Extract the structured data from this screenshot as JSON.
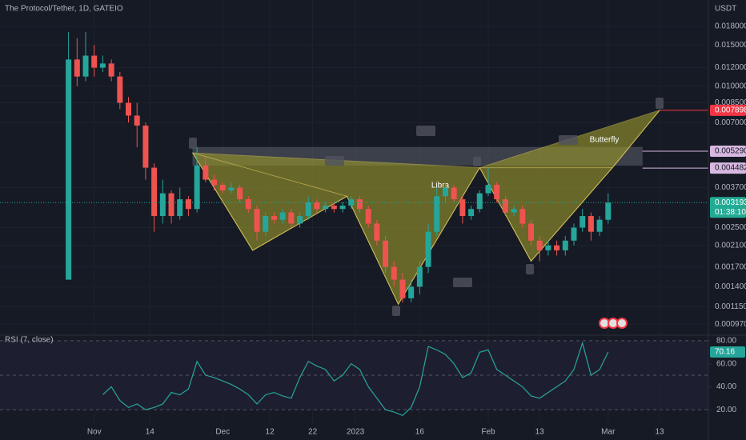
{
  "chart_data": {
    "type": "candlestick",
    "title": "The Protocol/Tether, 1D, GATEIO",
    "y_unit": "USDT",
    "log_scale": true,
    "up_color": "#26a69a",
    "down_color": "#ef5350",
    "x": [
      -6,
      -4,
      -2,
      0,
      2,
      4,
      6,
      8,
      10,
      12,
      14,
      16,
      18,
      20,
      22,
      24,
      26,
      28,
      30,
      32,
      34,
      36,
      38,
      40,
      42,
      44,
      46,
      48,
      50,
      52,
      54,
      56,
      58,
      60,
      62,
      64,
      66,
      68,
      70,
      72,
      74,
      76,
      78,
      80,
      82,
      84,
      86,
      88,
      90,
      92,
      94,
      96,
      98,
      100,
      102,
      104,
      106,
      108,
      110,
      112,
      114,
      116,
      118,
      120
    ],
    "open": [
      0.0015,
      0.013,
      0.011,
      0.0135,
      0.012,
      0.0125,
      0.011,
      0.0085,
      0.0075,
      0.0068,
      0.0045,
      0.0028,
      0.0035,
      0.0028,
      0.0033,
      0.003,
      0.0046,
      0.004,
      0.0038,
      0.0036,
      0.0037,
      0.0033,
      0.003,
      0.0024,
      0.0028,
      0.0027,
      0.0029,
      0.0026,
      0.0028,
      0.0032,
      0.003,
      0.0031,
      0.003,
      0.0031,
      0.0033,
      0.003,
      0.0026,
      0.0022,
      0.0017,
      0.0015,
      0.00125,
      0.0014,
      0.0017,
      0.0024,
      0.0034,
      0.0037,
      0.0033,
      0.0028,
      0.003,
      0.0035,
      0.0038,
      0.0033,
      0.0029,
      0.003,
      0.0026,
      0.0022,
      0.002,
      0.0021,
      0.002,
      0.0022,
      0.0025,
      0.0028,
      0.0024,
      0.0027
    ],
    "high": [
      0.017,
      0.016,
      0.017,
      0.015,
      0.0135,
      0.013,
      0.0115,
      0.009,
      0.0085,
      0.007,
      0.0047,
      0.004,
      0.0036,
      0.0037,
      0.0034,
      0.0055,
      0.005,
      0.0042,
      0.0039,
      0.0039,
      0.0038,
      0.0034,
      0.0031,
      0.0029,
      0.0029,
      0.003,
      0.003,
      0.0029,
      0.0034,
      0.0033,
      0.0032,
      0.0032,
      0.0032,
      0.0034,
      0.0034,
      0.0031,
      0.0027,
      0.0023,
      0.0018,
      0.0016,
      0.0015,
      0.0018,
      0.0026,
      0.0037,
      0.0039,
      0.0038,
      0.0034,
      0.0031,
      0.0036,
      0.0045,
      0.0039,
      0.0034,
      0.0031,
      0.0031,
      0.0027,
      0.0023,
      0.0022,
      0.0022,
      0.0023,
      0.0026,
      0.003,
      0.0029,
      0.0028,
      0.0035
    ],
    "low": [
      0.0015,
      0.01,
      0.0105,
      0.011,
      0.0115,
      0.0105,
      0.008,
      0.007,
      0.0055,
      0.004,
      0.0024,
      0.0026,
      0.0026,
      0.0027,
      0.0028,
      0.0029,
      0.0039,
      0.0036,
      0.0035,
      0.0035,
      0.0032,
      0.0029,
      0.0022,
      0.0023,
      0.0026,
      0.0026,
      0.0025,
      0.0025,
      0.0027,
      0.0029,
      0.0029,
      0.0029,
      0.0029,
      0.003,
      0.0029,
      0.0025,
      0.0021,
      0.0016,
      0.0014,
      0.0012,
      0.0012,
      0.0013,
      0.0016,
      0.0023,
      0.0032,
      0.0032,
      0.0026,
      0.0027,
      0.0029,
      0.0034,
      0.0032,
      0.0028,
      0.0028,
      0.0025,
      0.0021,
      0.0018,
      0.0019,
      0.0019,
      0.0019,
      0.0021,
      0.0024,
      0.0022,
      0.0023,
      0.0026
    ],
    "close": [
      0.013,
      0.011,
      0.0135,
      0.012,
      0.0125,
      0.011,
      0.0085,
      0.0075,
      0.0068,
      0.0045,
      0.0028,
      0.0035,
      0.0028,
      0.0033,
      0.003,
      0.0046,
      0.004,
      0.0038,
      0.0036,
      0.0037,
      0.0033,
      0.003,
      0.0024,
      0.0028,
      0.0027,
      0.0029,
      0.0026,
      0.0028,
      0.0032,
      0.003,
      0.0031,
      0.003,
      0.0031,
      0.0033,
      0.003,
      0.0026,
      0.0022,
      0.0017,
      0.0015,
      0.00125,
      0.0014,
      0.0017,
      0.0024,
      0.0034,
      0.0037,
      0.0033,
      0.0028,
      0.003,
      0.0035,
      0.0038,
      0.0033,
      0.0029,
      0.003,
      0.0026,
      0.0022,
      0.002,
      0.0021,
      0.002,
      0.0022,
      0.0025,
      0.0028,
      0.0024,
      0.0027,
      0.003193
    ],
    "xlim": [
      -22,
      143.4
    ],
    "ylim": [
      0.000877,
      0.0233
    ],
    "xticks": [
      {
        "value": 0,
        "label": "Nov"
      },
      {
        "value": 13,
        "label": "14"
      },
      {
        "value": 30,
        "label": "Dec"
      },
      {
        "value": 41,
        "label": "12"
      },
      {
        "value": 51,
        "label": "22"
      },
      {
        "value": 61,
        "label": "2023"
      },
      {
        "value": 76,
        "label": "16"
      },
      {
        "value": 92,
        "label": "Feb"
      },
      {
        "value": 104,
        "label": "13"
      },
      {
        "value": 120,
        "label": "Mar"
      },
      {
        "value": 132,
        "label": "13"
      }
    ],
    "yticks": [
      {
        "value": 0.018,
        "label": "0.018000"
      },
      {
        "value": 0.015,
        "label": "0.015000"
      },
      {
        "value": 0.012,
        "label": "0.012000"
      },
      {
        "value": 0.01,
        "label": "0.010000"
      },
      {
        "value": 0.0085,
        "label": "0.008500"
      },
      {
        "value": 0.007,
        "label": "0.007000"
      },
      {
        "value": 0.0037,
        "label": "0.003700"
      },
      {
        "value": 0.0025,
        "label": "0.002500"
      },
      {
        "value": 0.0021,
        "label": "0.002100"
      },
      {
        "value": 0.0017,
        "label": "0.001700"
      },
      {
        "value": 0.0014,
        "label": "0.001400"
      },
      {
        "value": 0.00115,
        "label": "0.001150"
      },
      {
        "value": 0.00097,
        "label": "0.000970"
      }
    ],
    "price_labels": [
      {
        "value": 0.007898,
        "color": "#f23645",
        "text_color": "#ffffff",
        "from": 132
      },
      {
        "value": {
          "value": 0.00529,
          "label": "0.005290"
        },
        "color": "#d7b8e0",
        "text_color": "#131722",
        "from": 128
      },
      {
        "value": 0.004482,
        "color": "#d7b8e0",
        "text_color": "#131722",
        "from": 128
      }
    ],
    "current_price": {
      "value": 0.003193,
      "countdown": "01:38:10",
      "color": "#22ab94"
    },
    "zone": {
      "x": [
        23,
        128
      ],
      "y": [
        0.0046,
        0.0055
      ]
    },
    "patterns": [
      {
        "name": "Libra",
        "x": [
          23,
          37,
          59,
          71,
          90
        ],
        "y": [
          0.0052,
          0.002,
          0.0034,
          0.00118,
          0.0045
        ]
      },
      {
        "name": "Butterfly",
        "x": [
          90,
          102,
          121,
          132
        ],
        "y": [
          0.0045,
          0.0018,
          0.0045,
          0.007898
        ]
      }
    ],
    "rsi": {
      "title": "RSI (7, close)",
      "color": "#26a69a",
      "values": [
        null,
        null,
        null,
        null,
        33,
        40,
        28,
        22,
        25,
        20,
        22,
        25,
        35,
        33,
        38,
        62,
        50,
        48,
        45,
        42,
        38,
        33,
        25,
        33,
        35,
        32,
        30,
        48,
        62,
        58,
        55,
        45,
        50,
        60,
        55,
        40,
        30,
        20,
        18,
        15,
        22,
        40,
        75,
        72,
        68,
        60,
        48,
        52,
        70,
        72,
        55,
        50,
        45,
        40,
        32,
        30,
        35,
        40,
        45,
        55,
        78,
        50,
        55,
        70.16
      ],
      "ylim": [
        7.6,
        84.1
      ],
      "yticks": [
        {
          "value": 80,
          "label": "80.00"
        },
        {
          "value": 60,
          "label": "60.00"
        },
        {
          "value": 40,
          "label": "40.00"
        },
        {
          "value": 20,
          "label": "20.00"
        }
      ],
      "levels": [
        80,
        50,
        20
      ]
    }
  }
}
